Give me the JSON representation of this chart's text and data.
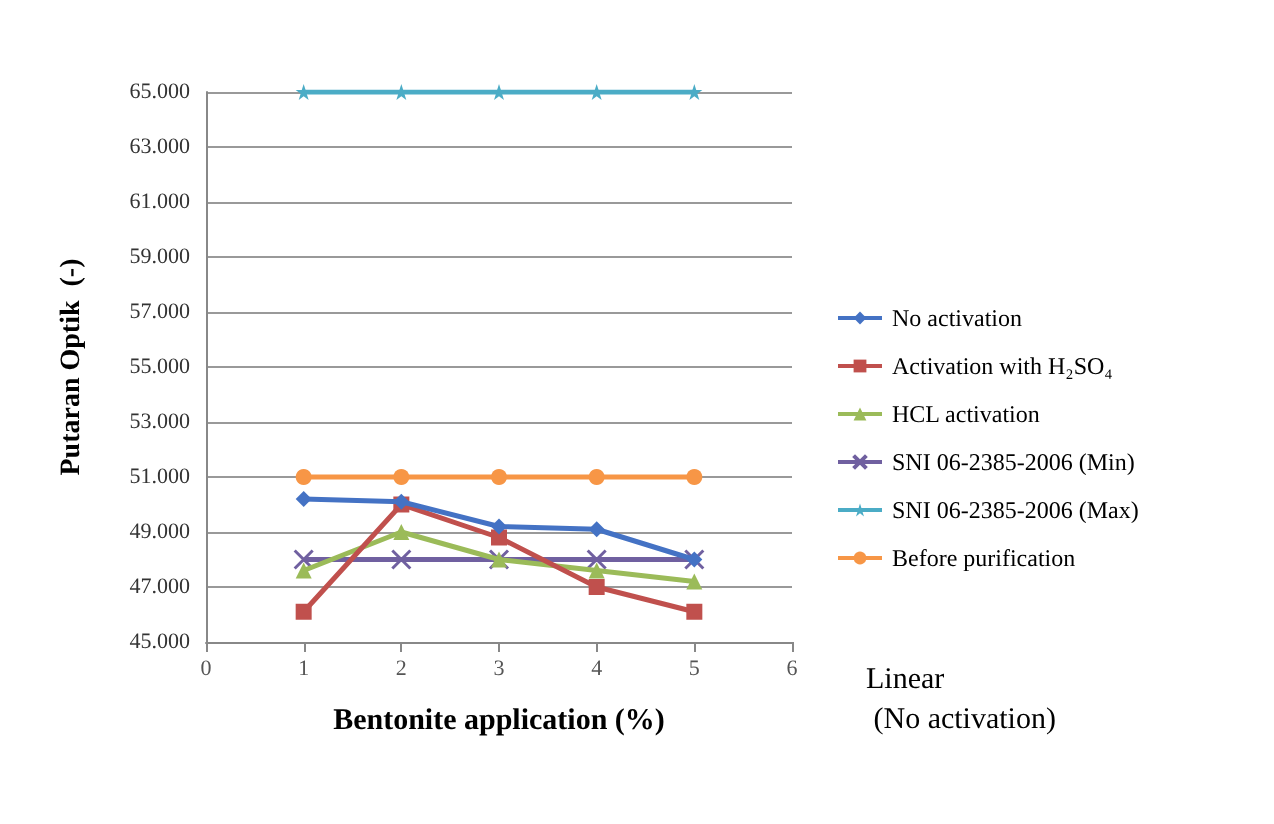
{
  "chart_data": {
    "type": "line",
    "xlabel": "Bentonite application (%)",
    "ylabel": "Putaran Optik  (-)",
    "x": [
      1,
      2,
      3,
      4,
      5
    ],
    "series": [
      {
        "name": "No activation",
        "color": "#4472c4",
        "marker": "diamond",
        "values": [
          50200,
          50100,
          49200,
          49100,
          48000
        ]
      },
      {
        "name": "Activation with H₂SO₄",
        "color": "#c0504d",
        "marker": "square",
        "values": [
          46100,
          50000,
          48800,
          47000,
          46100
        ]
      },
      {
        "name": "HCL activation",
        "color": "#9bbb59",
        "marker": "triangle",
        "values": [
          47600,
          49000,
          48000,
          47600,
          47200
        ]
      },
      {
        "name": "SNI 06-2385-2006 (Min)",
        "color": "#7060a0",
        "marker": "cross",
        "values": [
          48000,
          48000,
          48000,
          48000,
          48000
        ]
      },
      {
        "name": "SNI 06-2385-2006 (Max)",
        "color": "#4bacc6",
        "marker": "star",
        "values": [
          65000,
          65000,
          65000,
          65000,
          65000
        ]
      },
      {
        "name": "Before purification",
        "color": "#f79646",
        "marker": "circle",
        "values": [
          51000,
          51000,
          51000,
          51000,
          51000
        ]
      }
    ],
    "xlim": [
      0,
      6
    ],
    "xticks": [
      0,
      1,
      2,
      3,
      4,
      5,
      6
    ],
    "ylim": [
      45000,
      65000
    ],
    "yticks": [
      {
        "value": 45000,
        "label": "45.000"
      },
      {
        "value": 47000,
        "label": "47.000"
      },
      {
        "value": 49000,
        "label": "49.000"
      },
      {
        "value": 51000,
        "label": "51.000"
      },
      {
        "value": 53000,
        "label": "53.000"
      },
      {
        "value": 55000,
        "label": "55.000"
      },
      {
        "value": 57000,
        "label": "57.000"
      },
      {
        "value": 59000,
        "label": "59.000"
      },
      {
        "value": 61000,
        "label": "61.000"
      },
      {
        "value": 63000,
        "label": "63.000"
      },
      {
        "value": 65000,
        "label": "65.000"
      }
    ],
    "grid": "y",
    "legend": "right",
    "annotations": [
      "Linear\n (No activation)"
    ]
  }
}
